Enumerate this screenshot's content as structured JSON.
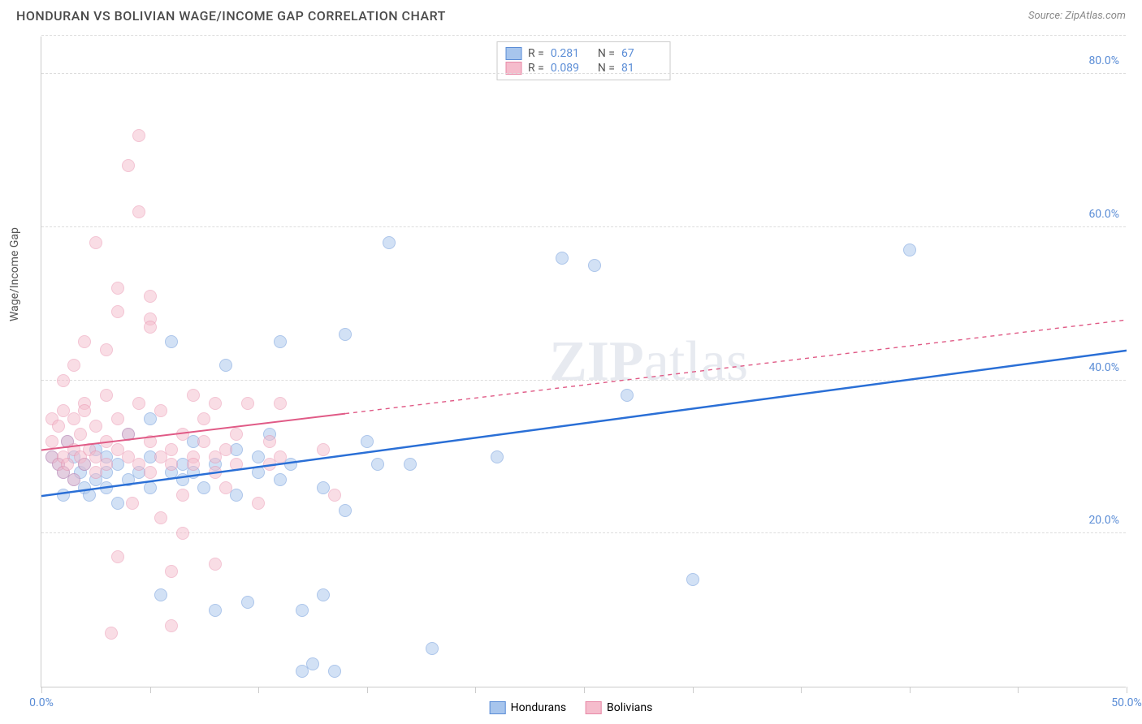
{
  "title": "HONDURAN VS BOLIVIAN WAGE/INCOME GAP CORRELATION CHART",
  "source": "Source: ZipAtlas.com",
  "y_axis_label": "Wage/Income Gap",
  "watermark_zip": "ZIP",
  "watermark_atlas": "atlas",
  "chart": {
    "type": "scatter",
    "xlim": [
      0,
      50
    ],
    "ylim": [
      0,
      85
    ],
    "x_ticks": [
      0,
      5,
      10,
      15,
      20,
      25,
      30,
      35,
      40,
      45,
      50
    ],
    "x_tick_labels": {
      "0": "0.0%",
      "50": "50.0%"
    },
    "y_grid": [
      20,
      40,
      60,
      80,
      85
    ],
    "y_labels": {
      "20": "20.0%",
      "40": "40.0%",
      "60": "60.0%",
      "80": "80.0%"
    },
    "background_color": "#ffffff",
    "grid_color": "#dddddd",
    "axis_color": "#cccccc",
    "label_color": "#5b8dd6",
    "point_radius": 8,
    "point_opacity": 0.5,
    "series": [
      {
        "name": "Hondurans",
        "color_fill": "#a7c5ed",
        "color_stroke": "#5b8dd6",
        "R": "0.281",
        "N": "67",
        "trend": {
          "x1": 0,
          "y1": 25,
          "x2": 50,
          "y2": 44,
          "solid_until_x": 50,
          "color": "#2a6fd6",
          "width": 2.5
        },
        "points": [
          [
            0.5,
            30
          ],
          [
            0.8,
            29
          ],
          [
            1,
            28
          ],
          [
            1,
            25
          ],
          [
            1.2,
            32
          ],
          [
            1.5,
            27
          ],
          [
            1.5,
            30
          ],
          [
            1.8,
            28
          ],
          [
            2,
            26
          ],
          [
            2,
            29
          ],
          [
            2.2,
            25
          ],
          [
            2.5,
            31
          ],
          [
            2.5,
            27
          ],
          [
            3,
            28
          ],
          [
            3,
            26
          ],
          [
            3,
            30
          ],
          [
            3.5,
            29
          ],
          [
            3.5,
            24
          ],
          [
            4,
            27
          ],
          [
            4,
            33
          ],
          [
            4.5,
            28
          ],
          [
            5,
            26
          ],
          [
            5,
            30
          ],
          [
            5,
            35
          ],
          [
            5.5,
            12
          ],
          [
            6,
            28
          ],
          [
            6,
            45
          ],
          [
            6.5,
            27
          ],
          [
            6.5,
            29
          ],
          [
            7,
            28
          ],
          [
            7,
            32
          ],
          [
            7.5,
            26
          ],
          [
            8,
            29
          ],
          [
            8,
            10
          ],
          [
            8.5,
            42
          ],
          [
            9,
            25
          ],
          [
            9,
            31
          ],
          [
            9.5,
            11
          ],
          [
            10,
            30
          ],
          [
            10,
            28
          ],
          [
            10.5,
            33
          ],
          [
            11,
            27
          ],
          [
            11,
            45
          ],
          [
            11.5,
            29
          ],
          [
            12,
            2
          ],
          [
            12,
            10
          ],
          [
            12.5,
            3
          ],
          [
            13,
            26
          ],
          [
            13,
            12
          ],
          [
            13.5,
            2
          ],
          [
            14,
            23
          ],
          [
            14,
            46
          ],
          [
            15,
            32
          ],
          [
            15.5,
            29
          ],
          [
            16,
            58
          ],
          [
            17,
            29
          ],
          [
            18,
            5
          ],
          [
            21,
            30
          ],
          [
            24,
            56
          ],
          [
            25.5,
            55
          ],
          [
            27,
            38
          ],
          [
            30,
            14
          ],
          [
            40,
            57
          ]
        ]
      },
      {
        "name": "Bolivians",
        "color_fill": "#f5bccc",
        "color_stroke": "#e88aa8",
        "R": "0.089",
        "N": "81",
        "trend": {
          "x1": 0,
          "y1": 31,
          "x2": 50,
          "y2": 48,
          "solid_until_x": 14,
          "color": "#e05a86",
          "width": 2
        },
        "points": [
          [
            0.5,
            35
          ],
          [
            0.5,
            32
          ],
          [
            0.5,
            30
          ],
          [
            0.8,
            29
          ],
          [
            0.8,
            34
          ],
          [
            1,
            28
          ],
          [
            1,
            36
          ],
          [
            1,
            30
          ],
          [
            1,
            40
          ],
          [
            1.2,
            32
          ],
          [
            1.2,
            29
          ],
          [
            1.5,
            31
          ],
          [
            1.5,
            35
          ],
          [
            1.5,
            27
          ],
          [
            1.5,
            42
          ],
          [
            1.8,
            30
          ],
          [
            1.8,
            33
          ],
          [
            2,
            29
          ],
          [
            2,
            37
          ],
          [
            2,
            36
          ],
          [
            2,
            45
          ],
          [
            2.2,
            31
          ],
          [
            2.5,
            30
          ],
          [
            2.5,
            34
          ],
          [
            2.5,
            28
          ],
          [
            2.5,
            58
          ],
          [
            3,
            32
          ],
          [
            3,
            29
          ],
          [
            3,
            38
          ],
          [
            3,
            44
          ],
          [
            3.2,
            7
          ],
          [
            3.5,
            31
          ],
          [
            3.5,
            35
          ],
          [
            3.5,
            49
          ],
          [
            3.5,
            52
          ],
          [
            3.5,
            17
          ],
          [
            4,
            30
          ],
          [
            4,
            33
          ],
          [
            4,
            68
          ],
          [
            4.2,
            24
          ],
          [
            4.5,
            29
          ],
          [
            4.5,
            37
          ],
          [
            4.5,
            62
          ],
          [
            4.5,
            72
          ],
          [
            5,
            32
          ],
          [
            5,
            28
          ],
          [
            5,
            48
          ],
          [
            5,
            47
          ],
          [
            5,
            51
          ],
          [
            5.5,
            30
          ],
          [
            5.5,
            36
          ],
          [
            5.5,
            22
          ],
          [
            6,
            31
          ],
          [
            6,
            29
          ],
          [
            6,
            8
          ],
          [
            6,
            15
          ],
          [
            6.5,
            33
          ],
          [
            6.5,
            25
          ],
          [
            6.5,
            20
          ],
          [
            7,
            30
          ],
          [
            7,
            38
          ],
          [
            7,
            29
          ],
          [
            7.5,
            32
          ],
          [
            7.5,
            35
          ],
          [
            8,
            30
          ],
          [
            8,
            28
          ],
          [
            8,
            37
          ],
          [
            8,
            16
          ],
          [
            8.5,
            31
          ],
          [
            8.5,
            26
          ],
          [
            9,
            33
          ],
          [
            9,
            29
          ],
          [
            9.5,
            37
          ],
          [
            10,
            24
          ],
          [
            10.5,
            32
          ],
          [
            10.5,
            29
          ],
          [
            11,
            37
          ],
          [
            11,
            30
          ],
          [
            13,
            31
          ],
          [
            13.5,
            25
          ]
        ]
      }
    ]
  },
  "legend_stats_labels": {
    "R": "R =",
    "N": "N ="
  },
  "bottom_legend": [
    "Hondurans",
    "Bolivians"
  ]
}
